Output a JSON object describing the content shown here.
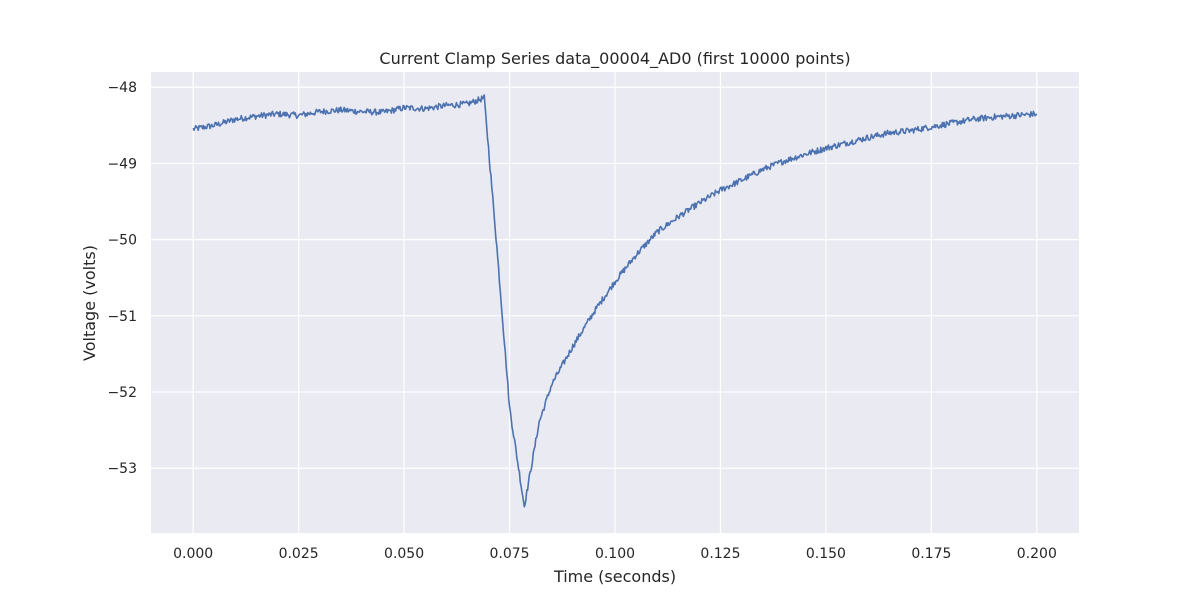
{
  "chart_data": {
    "type": "line",
    "title": "Current Clamp Series data_00004_AD0 (first 10000 points)",
    "xlabel": "Time (seconds)",
    "ylabel": "Voltage (volts)",
    "xlim": [
      -0.01,
      0.21
    ],
    "ylim": [
      -53.85,
      -47.8
    ],
    "xticks": [
      0.0,
      0.025,
      0.05,
      0.075,
      0.1,
      0.125,
      0.15,
      0.175,
      0.2
    ],
    "xtick_labels": [
      "0.000",
      "0.025",
      "0.050",
      "0.075",
      "0.100",
      "0.125",
      "0.150",
      "0.175",
      "0.200"
    ],
    "yticks": [
      -48,
      -49,
      -50,
      -51,
      -52,
      -53
    ],
    "ytick_labels": [
      "−48",
      "−49",
      "−50",
      "−51",
      "−52",
      "−53"
    ],
    "grid": true,
    "colors": {
      "line": "#4c72b0",
      "background": "#eaeaf2",
      "grid": "#ffffff"
    },
    "series": [
      {
        "x": [
          0.0,
          0.005,
          0.01,
          0.015,
          0.02,
          0.025,
          0.03,
          0.035,
          0.04,
          0.045,
          0.05,
          0.055,
          0.06,
          0.065,
          0.069,
          0.072,
          0.075,
          0.0785,
          0.082,
          0.085,
          0.09,
          0.095,
          0.1,
          0.105,
          0.11,
          0.115,
          0.12,
          0.125,
          0.13,
          0.135,
          0.14,
          0.145,
          0.15,
          0.155,
          0.16,
          0.165,
          0.17,
          0.175,
          0.18,
          0.185,
          0.19,
          0.195,
          0.2
        ],
        "y": [
          -48.55,
          -48.5,
          -48.42,
          -48.38,
          -48.35,
          -48.37,
          -48.32,
          -48.3,
          -48.32,
          -48.33,
          -48.27,
          -48.28,
          -48.24,
          -48.22,
          -48.14,
          -50.1,
          -52.2,
          -53.5,
          -52.4,
          -51.9,
          -51.4,
          -50.95,
          -50.55,
          -50.2,
          -49.9,
          -49.7,
          -49.52,
          -49.35,
          -49.22,
          -49.08,
          -48.97,
          -48.88,
          -48.8,
          -48.73,
          -48.66,
          -48.6,
          -48.57,
          -48.52,
          -48.47,
          -48.42,
          -48.39,
          -48.37,
          -48.35
        ]
      }
    ]
  }
}
